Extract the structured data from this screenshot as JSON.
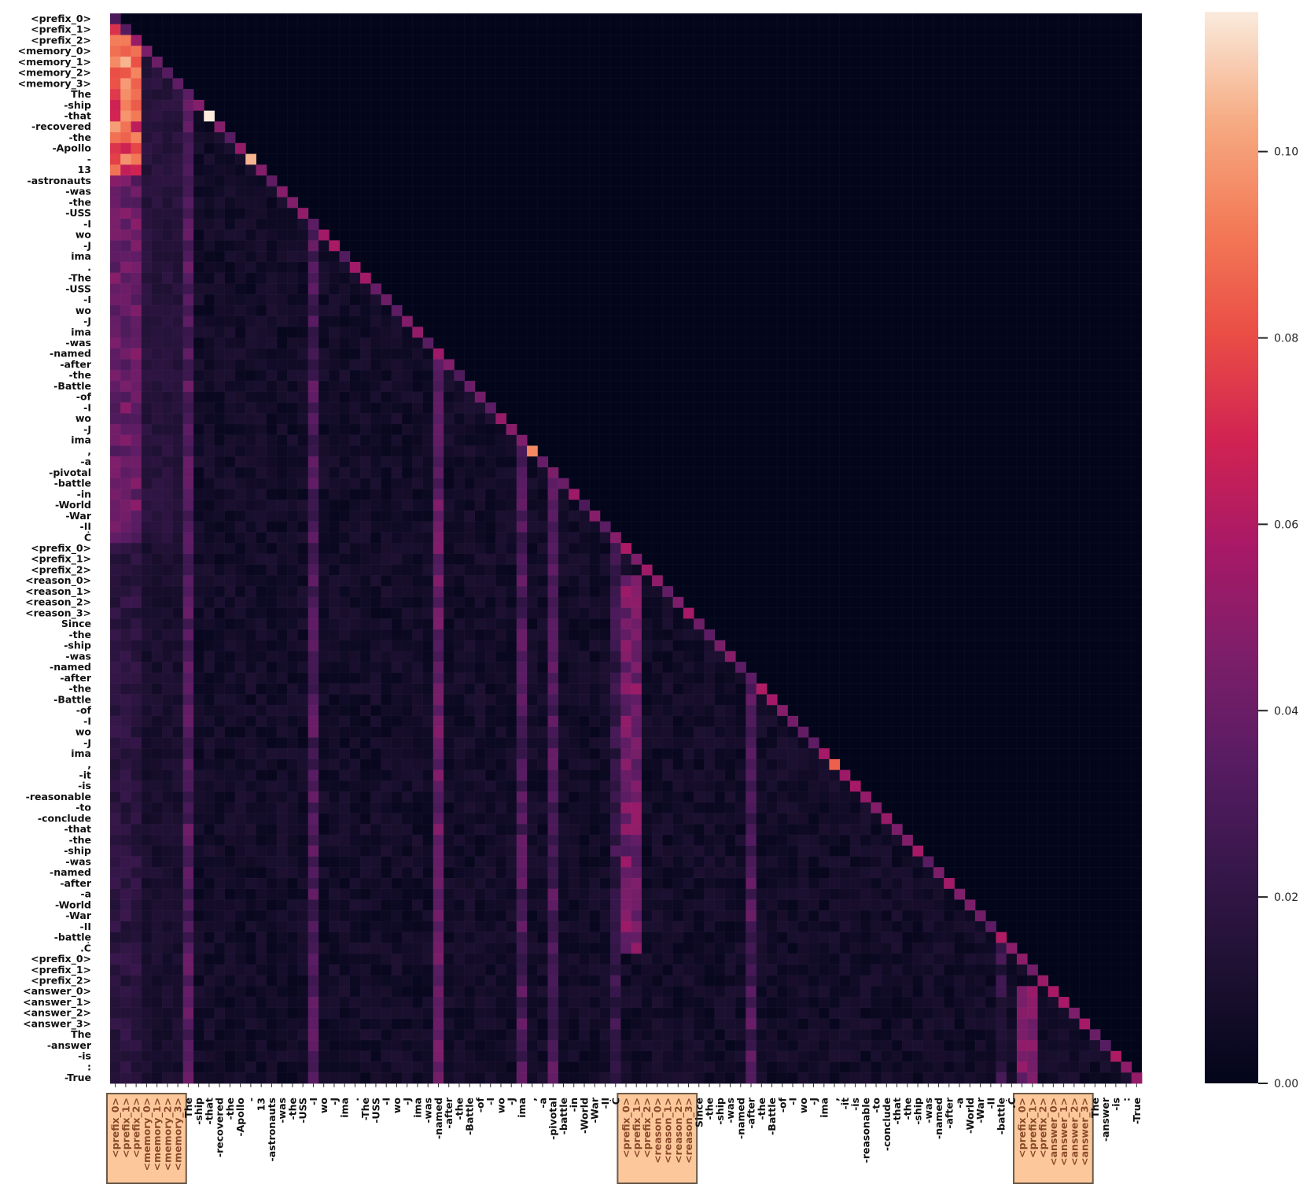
{
  "chart_data": {
    "type": "heatmap",
    "title": "",
    "xlabel": "",
    "ylabel": "",
    "tokens": [
      "<prefix_0>",
      "<prefix_1>",
      "<prefix_2>",
      "<memory_0>",
      "<memory_1>",
      "<memory_2>",
      "<memory_3>",
      "The",
      "-ship",
      "-that",
      "-recovered",
      "-the",
      "-Apollo",
      "-",
      "13",
      "-astronauts",
      "-was",
      "-the",
      "-USS",
      "-I",
      "wo",
      "-J",
      "ima",
      ".",
      "-The",
      "-USS",
      "-I",
      "wo",
      "-J",
      "ima",
      "-was",
      "-named",
      "-after",
      "-the",
      "-Battle",
      "-of",
      "-I",
      "wo",
      "-J",
      "ima",
      ",",
      "-a",
      "-pivotal",
      "-battle",
      "-in",
      "-World",
      "-War",
      "-II",
      "Ċ",
      "<prefix_0>",
      "<prefix_1>",
      "<prefix_2>",
      "<reason_0>",
      "<reason_1>",
      "<reason_2>",
      "<reason_3>",
      "Since",
      "-the",
      "-ship",
      "-was",
      "-named",
      "-after",
      "-the",
      "-Battle",
      "-of",
      "-I",
      "wo",
      "-J",
      "ima",
      ",",
      "-it",
      "-is",
      "-reasonable",
      "-to",
      "-conclude",
      "-that",
      "-the",
      "-ship",
      "-was",
      "-named",
      "-after",
      "-a",
      "-World",
      "-War",
      "-II",
      "-battle",
      ".Ċ",
      "<prefix_0>",
      "<prefix_1>",
      "<prefix_2>",
      "<answer_0>",
      "<answer_1>",
      "<answer_2>",
      "<answer_3>",
      "The",
      "-answer",
      "-is",
      ":",
      "-True"
    ],
    "colorbar": {
      "min": 0.0,
      "max": 0.115,
      "ticks": [
        "0.00",
        "0.02",
        "0.04",
        "0.06",
        "0.08",
        "0.10"
      ]
    },
    "highlight_groups": [
      {
        "start": 0,
        "end": 6
      },
      {
        "start": 49,
        "end": 55
      },
      {
        "start": 87,
        "end": 93
      }
    ],
    "colormap": "rocket",
    "grid": true,
    "legend": "colorbar-right",
    "notable_cells": [
      {
        "row": 9,
        "col": 9,
        "value": 0.115
      },
      {
        "row": 13,
        "col": 13,
        "value": 0.105
      },
      {
        "row": 40,
        "col": 40,
        "value": 0.095
      },
      {
        "row": 69,
        "col": 69,
        "value": 0.085
      },
      {
        "row": 4,
        "col": 1,
        "value": 0.105
      },
      {
        "row": 10,
        "col": 0,
        "value": 0.1
      }
    ]
  }
}
